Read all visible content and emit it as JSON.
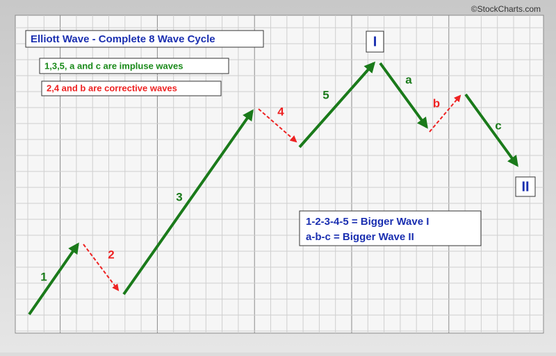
{
  "watermark": "©StockCharts.com",
  "title": "Elliott Wave - Complete 8 Wave Cycle",
  "impulse_note": "1,3,5, a and c are impluse waves",
  "corrective_note": "2,4 and b are corrective waves",
  "waves": [
    {
      "label": "1"
    },
    {
      "label": "2"
    },
    {
      "label": "3"
    },
    {
      "label": "4"
    },
    {
      "label": "5"
    },
    {
      "label": "a"
    },
    {
      "label": "b"
    },
    {
      "label": "c"
    }
  ],
  "peak_labels": [
    "I",
    "II"
  ],
  "summary": [
    "1-2-3-4-5 = Bigger Wave I",
    "a-b-c = Bigger Wave II"
  ]
}
